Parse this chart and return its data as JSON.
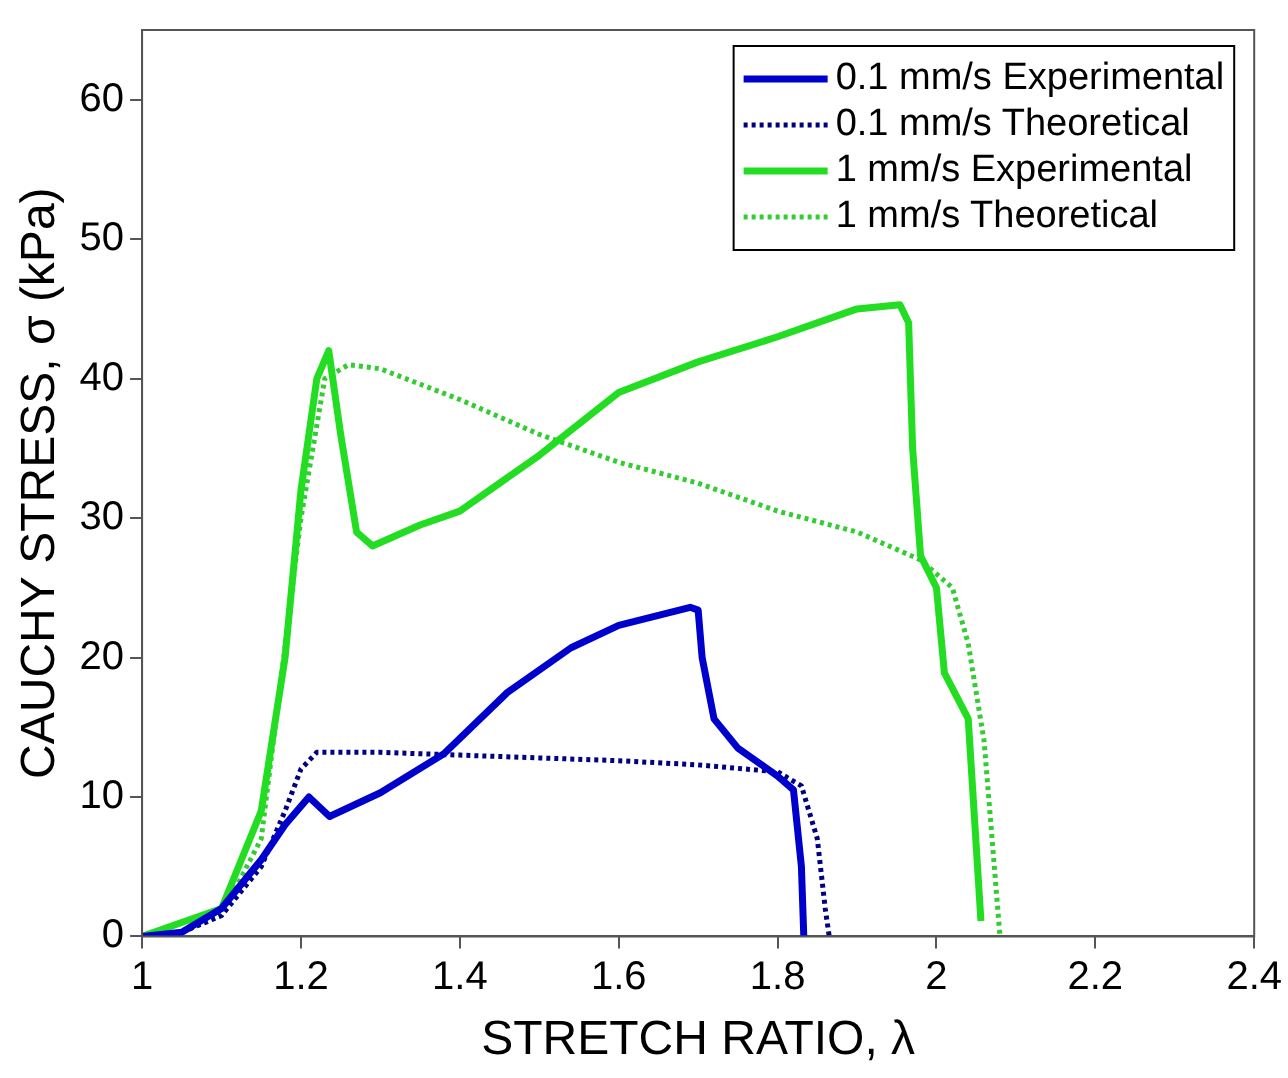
{
  "chart_data": {
    "type": "line",
    "xlabel": "STRETCH RATIO, λ",
    "ylabel": "CAUCHY STRESS, σ (kPa)",
    "xlim": [
      1,
      2.4
    ],
    "xticks": [
      1,
      1.2,
      1.4,
      1.6,
      1.8,
      2,
      2.2,
      2.4
    ],
    "ylim": [
      0,
      65
    ],
    "yticks": [
      0,
      10,
      20,
      30,
      40,
      50,
      60
    ],
    "grid": false,
    "legend": "top right",
    "marker": "none",
    "series": [
      {
        "name": "0.1 mm/s Experimental",
        "color": "#0000cc",
        "line_style": "solid",
        "x": [
          1,
          1.05,
          1.1,
          1.15,
          1.18,
          1.21,
          1.236,
          1.3,
          1.38,
          1.46,
          1.54,
          1.6,
          1.69,
          1.7,
          1.705,
          1.72,
          1.75,
          1.8,
          1.82,
          1.83,
          1.833
        ],
        "values": [
          0,
          0.3,
          2,
          5.5,
          8,
          10,
          8.6,
          10.3,
          13.1,
          17.5,
          20.7,
          22.3,
          23.6,
          23.4,
          20,
          15.6,
          13.5,
          11.5,
          10.5,
          5,
          0
        ]
      },
      {
        "name": "0.1 mm/s Theoretical",
        "color": "#000080",
        "line_style": "dotted",
        "x": [
          1,
          1.05,
          1.1,
          1.15,
          1.18,
          1.2,
          1.22,
          1.3,
          1.4,
          1.5,
          1.6,
          1.7,
          1.8,
          1.83,
          1.85,
          1.86,
          1.865
        ],
        "values": [
          0,
          0.3,
          1.5,
          5,
          9,
          12,
          13.2,
          13.2,
          13,
          12.8,
          12.6,
          12.3,
          11.8,
          10.8,
          7,
          2,
          0
        ]
      },
      {
        "name": "1 mm/s Experimental",
        "color": "#22dd22",
        "line_style": "solid",
        "x": [
          1,
          1.1,
          1.15,
          1.18,
          1.2,
          1.22,
          1.235,
          1.25,
          1.27,
          1.29,
          1.35,
          1.4,
          1.5,
          1.6,
          1.7,
          1.8,
          1.9,
          1.954,
          1.965,
          1.97,
          1.98,
          2,
          2.01,
          2.04,
          2.056
        ],
        "values": [
          0,
          2,
          9,
          20,
          32,
          40,
          42,
          36,
          29,
          28,
          29.5,
          30.5,
          34.5,
          39,
          41.2,
          43,
          45,
          45.3,
          44,
          35,
          27.3,
          25,
          18.9,
          15.6,
          1.1
        ]
      },
      {
        "name": "1 mm/s Theoretical",
        "color": "#33cc33",
        "line_style": "dotted",
        "x": [
          1,
          1.05,
          1.1,
          1.15,
          1.2,
          1.23,
          1.26,
          1.3,
          1.4,
          1.5,
          1.6,
          1.7,
          1.8,
          1.9,
          1.98,
          2.02,
          2.04,
          2.06,
          2.07,
          2.08
        ],
        "values": [
          0,
          0.3,
          1.5,
          7,
          30,
          40,
          41,
          40.7,
          38.5,
          36,
          34,
          32.5,
          30.5,
          29,
          27,
          25,
          21,
          14,
          7,
          0
        ]
      }
    ]
  }
}
